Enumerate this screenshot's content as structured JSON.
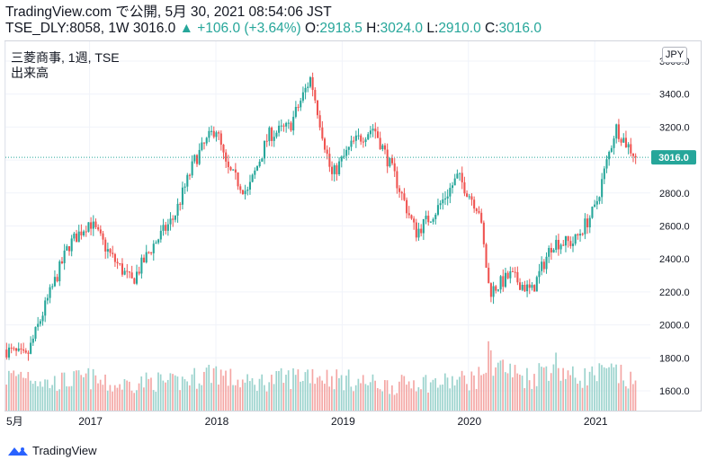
{
  "header": {
    "line1": "TradingView.com で公開, 5月 30, 2021 08:54:06 JST",
    "symbol": "TSE_DLY:8058, 1W 3016.0",
    "change": "▲ +106.0 (+3.64%)",
    "o_label": "O:",
    "o_value": "2918.5",
    "h_label": "H:",
    "h_value": "3024.0",
    "l_label": "L:",
    "l_value": "2910.0",
    "c_label": "C:",
    "c_value": "3016.0"
  },
  "legend": {
    "title": "三菱商事, 1週, TSE",
    "volume_label": "出来高"
  },
  "currency_button": "JPY",
  "footer": {
    "brand": "TradingView"
  },
  "colors": {
    "up": "#26a69a",
    "down": "#ef5350",
    "up_volume": "#9bd3cd",
    "down_volume": "#f4a6a4",
    "grid": "#f0f3fa",
    "text": "#131722"
  },
  "chart_data": {
    "type": "candlestick",
    "symbol": "8058",
    "interval": "1W",
    "ylim": [
      1480,
      3720
    ],
    "y_ticks": [
      1600,
      1800,
      2000,
      2200,
      2400,
      2600,
      2800,
      3000,
      3200,
      3400,
      3600
    ],
    "y_tick_labels": [
      "1600.0",
      "1800.0",
      "2000.0",
      "2200.0",
      "2400.0",
      "2600.0",
      "2800.0",
      "3000.0",
      "3200.0",
      "3400.0",
      "3600.0"
    ],
    "x_ticks": [
      {
        "label": "5月",
        "x": "2016-05"
      },
      {
        "label": "2017",
        "x": "2017-01"
      },
      {
        "label": "2018",
        "x": "2018-01"
      },
      {
        "label": "2019",
        "x": "2019-01"
      },
      {
        "label": "2020",
        "x": "2020-01"
      },
      {
        "label": "2021",
        "x": "2021-01"
      }
    ],
    "last_price": 3016.0,
    "last_price_label": "3016.0",
    "grid": true,
    "series": [
      {
        "name": "price",
        "type": "line",
        "x": [
          "2016-05",
          "2016-07",
          "2016-09",
          "2016-11",
          "2017-01",
          "2017-03",
          "2017-05",
          "2017-07",
          "2017-09",
          "2017-11",
          "2018-01",
          "2018-02",
          "2018-04",
          "2018-06",
          "2018-08",
          "2018-10",
          "2018-12",
          "2019-02",
          "2019-04",
          "2019-06",
          "2019-08",
          "2019-10",
          "2019-12",
          "2020-02",
          "2020-03",
          "2020-05",
          "2020-07",
          "2020-09",
          "2020-11",
          "2021-01",
          "2021-03",
          "2021-04",
          "2021-05"
        ],
        "values": [
          1850,
          1800,
          2150,
          2480,
          2630,
          2420,
          2260,
          2480,
          2650,
          3000,
          3200,
          2950,
          2800,
          3150,
          3200,
          3500,
          2900,
          3100,
          3200,
          2900,
          2560,
          2700,
          2900,
          2700,
          2200,
          2300,
          2200,
          2500,
          2500,
          2700,
          3200,
          3100,
          3016
        ]
      },
      {
        "name": "volume",
        "type": "bar",
        "values_relative": [
          0.6,
          0.7,
          0.5,
          0.55,
          0.6,
          0.45,
          0.5,
          0.55,
          0.5,
          0.6,
          0.75,
          0.6,
          0.5,
          0.55,
          0.6,
          0.7,
          0.6,
          0.55,
          0.5,
          0.45,
          0.55,
          0.5,
          0.55,
          0.6,
          1.0,
          0.7,
          0.6,
          0.9,
          0.6,
          0.65,
          0.7,
          0.55,
          0.5
        ]
      }
    ]
  }
}
